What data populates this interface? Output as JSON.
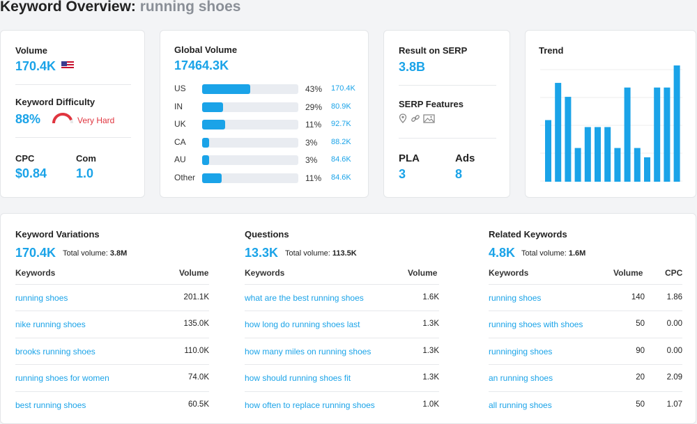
{
  "header": {
    "title_prefix": "Keyword Overview:",
    "keyword": "running shoes"
  },
  "volume_card": {
    "volume_label": "Volume",
    "volume_value": "170.4K",
    "flag": "us-flag-icon",
    "kd_label": "Keyword Difficulty",
    "kd_value": "88%",
    "kd_text": "Very Hard",
    "kd_percent": 88,
    "cpc_label": "CPC",
    "cpc_value": "$0.84",
    "com_label": "Com",
    "com_value": "1.0"
  },
  "global_card": {
    "label": "Global Volume",
    "value": "17464.3K",
    "rows": [
      {
        "country": "US",
        "pct": "43%",
        "fill": 0.5,
        "volume": "170.4K"
      },
      {
        "country": "IN",
        "pct": "29%",
        "fill": 0.22,
        "volume": "80.9K"
      },
      {
        "country": "UK",
        "pct": "11%",
        "fill": 0.24,
        "volume": "92.7K"
      },
      {
        "country": "CA",
        "pct": "3%",
        "fill": 0.07,
        "volume": "88.2K"
      },
      {
        "country": "AU",
        "pct": "3%",
        "fill": 0.07,
        "volume": "84.6K"
      },
      {
        "country": "Other",
        "pct": "11%",
        "fill": 0.2,
        "volume": "84.6K"
      }
    ]
  },
  "serp_card": {
    "result_label": "Result on SERP",
    "result_value": "3.8B",
    "features_label": "SERP Features",
    "features_icons": [
      "pin-icon",
      "link-icon",
      "image-icon"
    ],
    "pla_label": "PLA",
    "pla_value": "3",
    "ads_label": "Ads",
    "ads_value": "8"
  },
  "trend_card": {
    "label": "Trend",
    "chart_data": {
      "type": "bar",
      "values": [
        0.53,
        0.85,
        0.73,
        0.29,
        0.47,
        0.47,
        0.47,
        0.29,
        0.81,
        0.29,
        0.21,
        0.81,
        0.81,
        1.0
      ]
    }
  },
  "colors": {
    "accent": "#1aa3e8",
    "danger": "#e0353f"
  },
  "variations": {
    "title": "Keyword Variations",
    "count": "170.4K",
    "total_label": "Total volume:",
    "total_value": "3.8M",
    "col_keyword": "Keywords",
    "col_volume": "Volume",
    "rows": [
      {
        "keyword": "running shoes",
        "volume": "201.1K"
      },
      {
        "keyword": "nike running shoes",
        "volume": "135.0K"
      },
      {
        "keyword": "brooks running shoes",
        "volume": "110.0K"
      },
      {
        "keyword": "running shoes for women",
        "volume": "74.0K"
      },
      {
        "keyword": "best running shoes",
        "volume": "60.5K"
      }
    ]
  },
  "questions": {
    "title": "Questions",
    "count": "13.3K",
    "total_label": "Total volume:",
    "total_value": "113.5K",
    "col_keyword": "Keywords",
    "col_volume": "Volume",
    "rows": [
      {
        "keyword": "what are the best running shoes",
        "volume": "1.6K"
      },
      {
        "keyword": "how long do running shoes last",
        "volume": "1.3K"
      },
      {
        "keyword": "how many miles on running shoes",
        "volume": "1.3K"
      },
      {
        "keyword": "how should running shoes fit",
        "volume": "1.3K"
      },
      {
        "keyword": "how often to replace running shoes",
        "volume": "1.0K"
      }
    ]
  },
  "related": {
    "title": "Related Keywords",
    "count": "4.8K",
    "total_label": "Total volume:",
    "total_value": "1.6M",
    "col_keyword": "Keywords",
    "col_volume": "Volume",
    "col_cpc": "CPC",
    "rows": [
      {
        "keyword": "running shoes",
        "volume": "140",
        "cpc": "1.86"
      },
      {
        "keyword": "running shoes with shoes",
        "volume": "50",
        "cpc": "0.00"
      },
      {
        "keyword": "runninging shoes",
        "volume": "90",
        "cpc": "0.00"
      },
      {
        "keyword": "an running shoes",
        "volume": "20",
        "cpc": "2.09"
      },
      {
        "keyword": "all running shoes",
        "volume": "50",
        "cpc": "1.07"
      }
    ]
  }
}
